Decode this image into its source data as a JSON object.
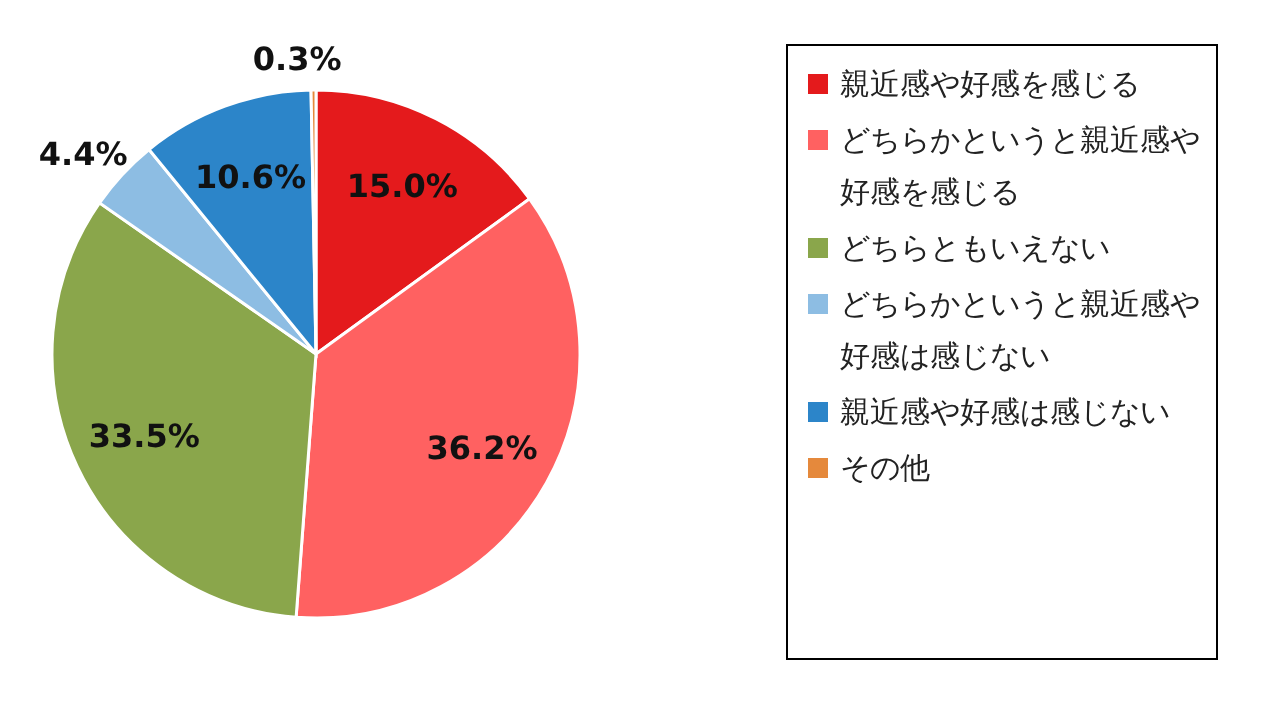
{
  "chart_data": {
    "type": "pie",
    "categories": [
      "親近感や好感を感じる",
      "どちらかというと親近感や好感を感じる",
      "どちらともいえない",
      "どちらかというと親近感や好感は感じない",
      "親近感や好感は感じない",
      "その他"
    ],
    "values": [
      15.0,
      36.2,
      33.5,
      4.4,
      10.6,
      0.3
    ],
    "colors": [
      "#e41a1c",
      "#ff6161",
      "#8aa64b",
      "#8dbde3",
      "#2c85c9",
      "#e5893c"
    ],
    "value_labels": [
      "15.0%",
      "36.2%",
      "33.5%",
      "4.4%",
      "10.6%",
      "0.3%"
    ],
    "legend": "right"
  }
}
